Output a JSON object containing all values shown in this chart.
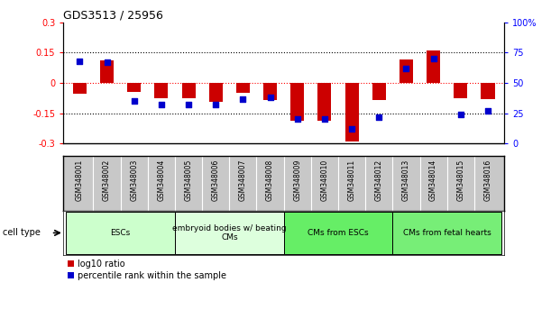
{
  "title": "GDS3513 / 25956",
  "samples": [
    "GSM348001",
    "GSM348002",
    "GSM348003",
    "GSM348004",
    "GSM348005",
    "GSM348006",
    "GSM348007",
    "GSM348008",
    "GSM348009",
    "GSM348010",
    "GSM348011",
    "GSM348012",
    "GSM348013",
    "GSM348014",
    "GSM348015",
    "GSM348016"
  ],
  "log10_ratio": [
    -0.055,
    0.11,
    -0.045,
    -0.075,
    -0.075,
    -0.095,
    -0.05,
    -0.085,
    -0.185,
    -0.185,
    -0.29,
    -0.085,
    0.115,
    0.16,
    -0.075,
    -0.08
  ],
  "percentile_rank": [
    68,
    67,
    35,
    32,
    32,
    32,
    37,
    38,
    20,
    20,
    12,
    22,
    62,
    70,
    24,
    27
  ],
  "ylim_left": [
    -0.3,
    0.3
  ],
  "ylim_right": [
    0,
    100
  ],
  "yticks_left": [
    -0.3,
    -0.15,
    0,
    0.15,
    0.3
  ],
  "ytick_labels_left": [
    "-0.3",
    "-0.15",
    "0",
    "0.15",
    "0.3"
  ],
  "yticks_right": [
    0,
    25,
    50,
    75,
    100
  ],
  "ytick_labels_right": [
    "0",
    "25",
    "50",
    "75",
    "100%"
  ],
  "hlines_dotted": [
    0.15,
    -0.15
  ],
  "hline_red_dotted": 0,
  "bar_color": "#cc0000",
  "square_color": "#0000cc",
  "bar_width": 0.5,
  "square_size": 22,
  "cell_types": [
    {
      "label": "ESCs",
      "start": 0,
      "end": 3,
      "color": "#ccffcc"
    },
    {
      "label": "embryoid bodies w/ beating\nCMs",
      "start": 4,
      "end": 7,
      "color": "#ddffdd"
    },
    {
      "label": "CMs from ESCs",
      "start": 8,
      "end": 11,
      "color": "#66ee66"
    },
    {
      "label": "CMs from fetal hearts",
      "start": 12,
      "end": 15,
      "color": "#77ee77"
    }
  ],
  "cell_type_label": "cell type",
  "legend_red": "log10 ratio",
  "legend_blue": "percentile rank within the sample",
  "xtick_bg": "#c8c8c8"
}
